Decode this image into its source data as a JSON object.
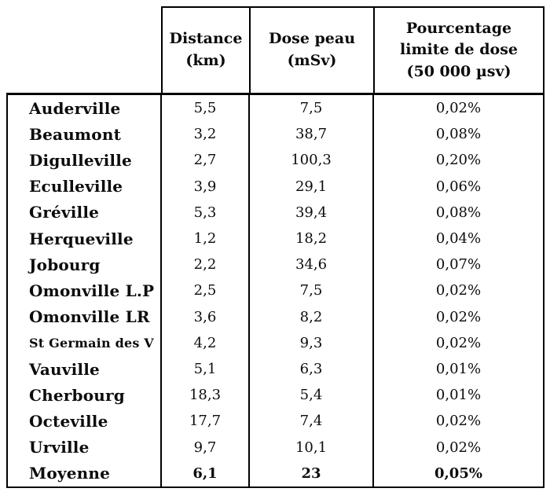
{
  "colors": {
    "background": "#ffffff",
    "ink": "#0c0c0c",
    "border": "#000000"
  },
  "table": {
    "header": {
      "col_distance": "Distance\n(km)",
      "col_dose": "Dose peau\n(mSv)",
      "col_pct": "Pourcentage\nlimite de dose\n(50 000 µsv)"
    },
    "rows": [
      {
        "name": "Auderville",
        "distance": "5,5",
        "dose": "7,5",
        "pct": "0,02%"
      },
      {
        "name": "Beaumont",
        "distance": "3,2",
        "dose": "38,7",
        "pct": "0,08%"
      },
      {
        "name": "Digulleville",
        "distance": "2,7",
        "dose": "100,3",
        "pct": "0,20%"
      },
      {
        "name": "Eculleville",
        "distance": "3,9",
        "dose": "29,1",
        "pct": "0,06%"
      },
      {
        "name": "Gréville",
        "distance": "5,3",
        "dose": "39,4",
        "pct": "0,08%"
      },
      {
        "name": "Herqueville",
        "distance": "1,2",
        "dose": "18,2",
        "pct": "0,04%"
      },
      {
        "name": "Jobourg",
        "distance": "2,2",
        "dose": "34,6",
        "pct": "0,07%"
      },
      {
        "name": "Omonville L.P",
        "distance": "2,5",
        "dose": "7,5",
        "pct": "0,02%"
      },
      {
        "name": "Omonville LR",
        "distance": "3,6",
        "dose": "8,2",
        "pct": "0,02%"
      },
      {
        "name": "St Germain des V",
        "distance": "4,2",
        "dose": "9,3",
        "pct": "0,02%",
        "small_name": true
      },
      {
        "name": "Vauville",
        "distance": "5,1",
        "dose": "6,3",
        "pct": "0,01%"
      },
      {
        "name": "Cherbourg",
        "distance": "18,3",
        "dose": "5,4",
        "pct": "0,01%"
      },
      {
        "name": "Octeville",
        "distance": "17,7",
        "dose": "7,4",
        "pct": "0,02%"
      },
      {
        "name": "Urville",
        "distance": "9,7",
        "dose": "10,1",
        "pct": "0,02%"
      },
      {
        "name": "Moyenne",
        "distance": "6,1",
        "dose": "23",
        "pct": "0,05%",
        "bold_values": true
      }
    ]
  }
}
